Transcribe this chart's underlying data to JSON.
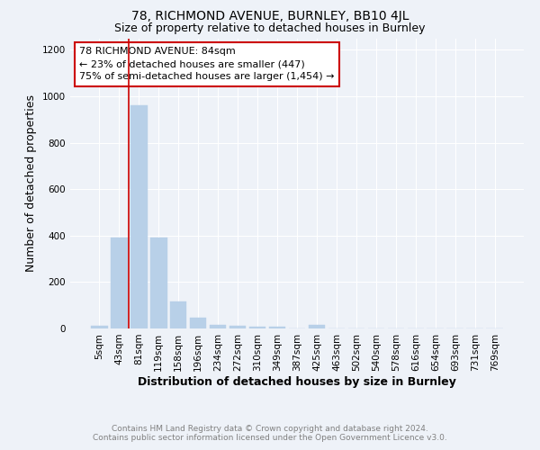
{
  "title1": "78, RICHMOND AVENUE, BURNLEY, BB10 4JL",
  "title2": "Size of property relative to detached houses in Burnley",
  "xlabel": "Distribution of detached houses by size in Burnley",
  "ylabel": "Number of detached properties",
  "annotation_line1": "78 RICHMOND AVENUE: 84sqm",
  "annotation_line2": "← 23% of detached houses are smaller (447)",
  "annotation_line3": "75% of semi-detached houses are larger (1,454) →",
  "footer1": "Contains HM Land Registry data © Crown copyright and database right 2024.",
  "footer2": "Contains public sector information licensed under the Open Government Licence v3.0.",
  "categories": [
    "5sqm",
    "43sqm",
    "81sqm",
    "119sqm",
    "158sqm",
    "196sqm",
    "234sqm",
    "272sqm",
    "310sqm",
    "349sqm",
    "387sqm",
    "425sqm",
    "463sqm",
    "502sqm",
    "540sqm",
    "578sqm",
    "616sqm",
    "654sqm",
    "693sqm",
    "731sqm",
    "769sqm"
  ],
  "values": [
    10,
    390,
    960,
    390,
    115,
    48,
    14,
    10,
    8,
    7,
    0,
    14,
    0,
    0,
    0,
    0,
    0,
    0,
    0,
    0,
    0
  ],
  "bar_color": "#b8d0e8",
  "bar_edge_color": "#b8d0e8",
  "redline_x": 1.5,
  "ylim": [
    0,
    1250
  ],
  "yticks": [
    0,
    200,
    400,
    600,
    800,
    1000,
    1200
  ],
  "background_color": "#eef2f8",
  "grid_color": "#ffffff",
  "box_color": "#cc0000",
  "title1_fontsize": 10,
  "title2_fontsize": 9,
  "annotation_fontsize": 8,
  "axis_label_fontsize": 9,
  "tick_fontsize": 7.5,
  "footer_fontsize": 6.5
}
